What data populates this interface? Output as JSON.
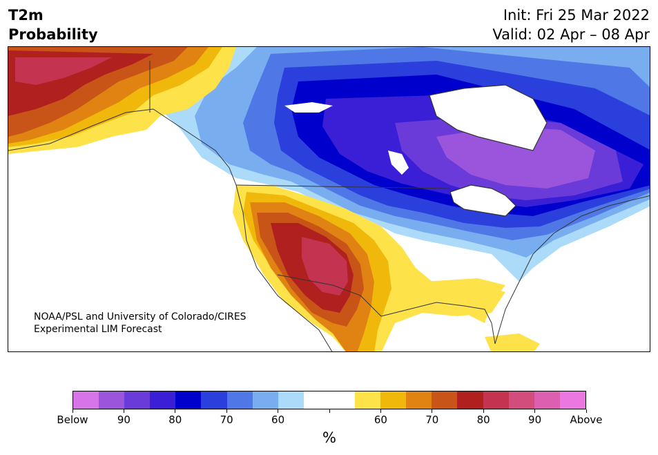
{
  "title": {
    "line1": "T2m",
    "line2": "Probability"
  },
  "dates": {
    "init": "Init: Fri 25 Mar 2022",
    "valid": "Valid: 02 Apr – 08 Apr"
  },
  "credit": {
    "line1": "NOAA/PSL and University of Colorado/CIRES",
    "line2": "Experimental LIM Forecast"
  },
  "colorbar": {
    "colors": [
      "#d674e8",
      "#9b55dc",
      "#6a3bd8",
      "#3a1fd6",
      "#0000cd",
      "#2a3fdc",
      "#4f78e6",
      "#78aef0",
      "#acdaf9",
      "#ffffff",
      "#ffffff",
      "#fde24a",
      "#f1b80c",
      "#e08312",
      "#c85418",
      "#b0201f",
      "#c43450",
      "#d24c7c",
      "#dc5fb0",
      "#ea78e0"
    ],
    "labels": [
      "Below",
      "90",
      "80",
      "70",
      "60",
      "60",
      "70",
      "80",
      "90",
      "Above"
    ],
    "unit": "%"
  },
  "map": {
    "palette": {
      "below_90": "#9b55dc",
      "below_80": "#6a3bd8",
      "below_75": "#3a1fd6",
      "below_70": "#0000cd",
      "below_65": "#2a3fdc",
      "below_60": "#4f78e6",
      "below_55": "#78aef0",
      "below_50": "#acdaf9",
      "neutral": "#ffffff",
      "above_50": "#fde24a",
      "above_55": "#f1b80c",
      "above_60": "#e08312",
      "above_65": "#c85418",
      "above_70": "#b0201f",
      "above_75": "#c43450",
      "lake": "#ffffff",
      "border": "#333333"
    }
  }
}
